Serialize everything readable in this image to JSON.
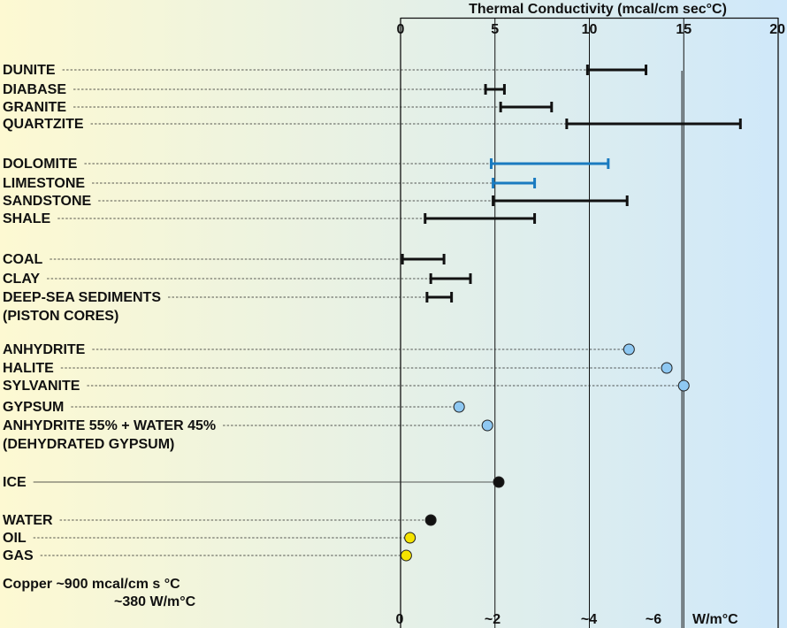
{
  "chart_data": {
    "type": "range-dot",
    "title": "Thermal Conductivity (mcal/cm sec°C)",
    "x_top": {
      "range": [
        0,
        20
      ],
      "ticks": [
        0,
        5,
        10,
        15,
        20
      ],
      "tick_labels": [
        "0",
        "5",
        "10",
        "15",
        "20"
      ]
    },
    "x_bottom": {
      "unit_label": "W/m°C",
      "ticks": [
        {
          "w": 0,
          "label": "0"
        },
        {
          "w": 2,
          "label": "~2"
        },
        {
          "w": 4,
          "label": "~4"
        },
        {
          "w": 6,
          "label": "~6"
        }
      ]
    },
    "reference_lines": [
      5,
      10,
      15
    ],
    "vertical_markers": [
      14.9
    ],
    "colors": {
      "range_black": "#111111",
      "range_blue": "#1a7bc0",
      "dot_blue": "#8ec8f2",
      "dot_black": "#111111",
      "dot_yellow": "#f4e300",
      "bg_left": "#fdf9d2",
      "bg_right": "#cfe8fa"
    },
    "series": [
      {
        "label": [
          "DUNITE"
        ],
        "kind": "range",
        "min": 9.9,
        "max": 13.0,
        "color": "black"
      },
      {
        "label": [
          "DIABASE"
        ],
        "kind": "range",
        "min": 4.5,
        "max": 5.5,
        "color": "black"
      },
      {
        "label": [
          "GRANITE"
        ],
        "kind": "range",
        "min": 5.3,
        "max": 8.0,
        "color": "black"
      },
      {
        "label": [
          "QUARTZITE"
        ],
        "kind": "range",
        "min": 8.8,
        "max": 18.0,
        "color": "black"
      },
      {
        "label": [
          "DOLOMITE"
        ],
        "kind": "range",
        "min": 4.8,
        "max": 11.0,
        "color": "blue"
      },
      {
        "label": [
          "LIMESTONE"
        ],
        "kind": "range",
        "min": 4.9,
        "max": 7.1,
        "color": "blue"
      },
      {
        "label": [
          "SANDSTONE"
        ],
        "kind": "range",
        "min": 4.9,
        "max": 12.0,
        "color": "black"
      },
      {
        "label": [
          "SHALE"
        ],
        "kind": "range",
        "min": 1.3,
        "max": 7.1,
        "color": "black"
      },
      {
        "label": [
          "COAL"
        ],
        "kind": "range",
        "min": 0.1,
        "max": 2.3,
        "color": "black"
      },
      {
        "label": [
          "CLAY"
        ],
        "kind": "range",
        "min": 1.6,
        "max": 3.7,
        "color": "black"
      },
      {
        "label": [
          "DEEP-SEA SEDIMENTS",
          "(PISTON CORES)"
        ],
        "kind": "range",
        "min": 1.4,
        "max": 2.7,
        "color": "black"
      },
      {
        "label": [
          "ANHYDRITE"
        ],
        "kind": "point",
        "value": 12.1,
        "color": "blue"
      },
      {
        "label": [
          "HALITE"
        ],
        "kind": "point",
        "value": 14.1,
        "color": "blue"
      },
      {
        "label": [
          "SYLVANITE"
        ],
        "kind": "point",
        "value": 15.0,
        "color": "blue"
      },
      {
        "label": [
          "GYPSUM"
        ],
        "kind": "point",
        "value": 3.1,
        "color": "blue"
      },
      {
        "label": [
          "ANHYDRITE 55% + WATER 45%",
          "(DEHYDRATED GYPSUM)"
        ],
        "kind": "point",
        "value": 4.6,
        "color": "blue"
      },
      {
        "label": [
          "ICE"
        ],
        "kind": "point",
        "value": 5.2,
        "color": "black",
        "line": "solid"
      },
      {
        "label": [
          "WATER"
        ],
        "kind": "point",
        "value": 1.6,
        "color": "black"
      },
      {
        "label": [
          "OIL"
        ],
        "kind": "point",
        "value": 0.5,
        "color": "yellow"
      },
      {
        "label": [
          "GAS"
        ],
        "kind": "point",
        "value": 0.3,
        "color": "yellow"
      }
    ],
    "footnote": [
      "Copper ~900 mcal/cm s °C",
      "~380 W/m°C"
    ]
  }
}
